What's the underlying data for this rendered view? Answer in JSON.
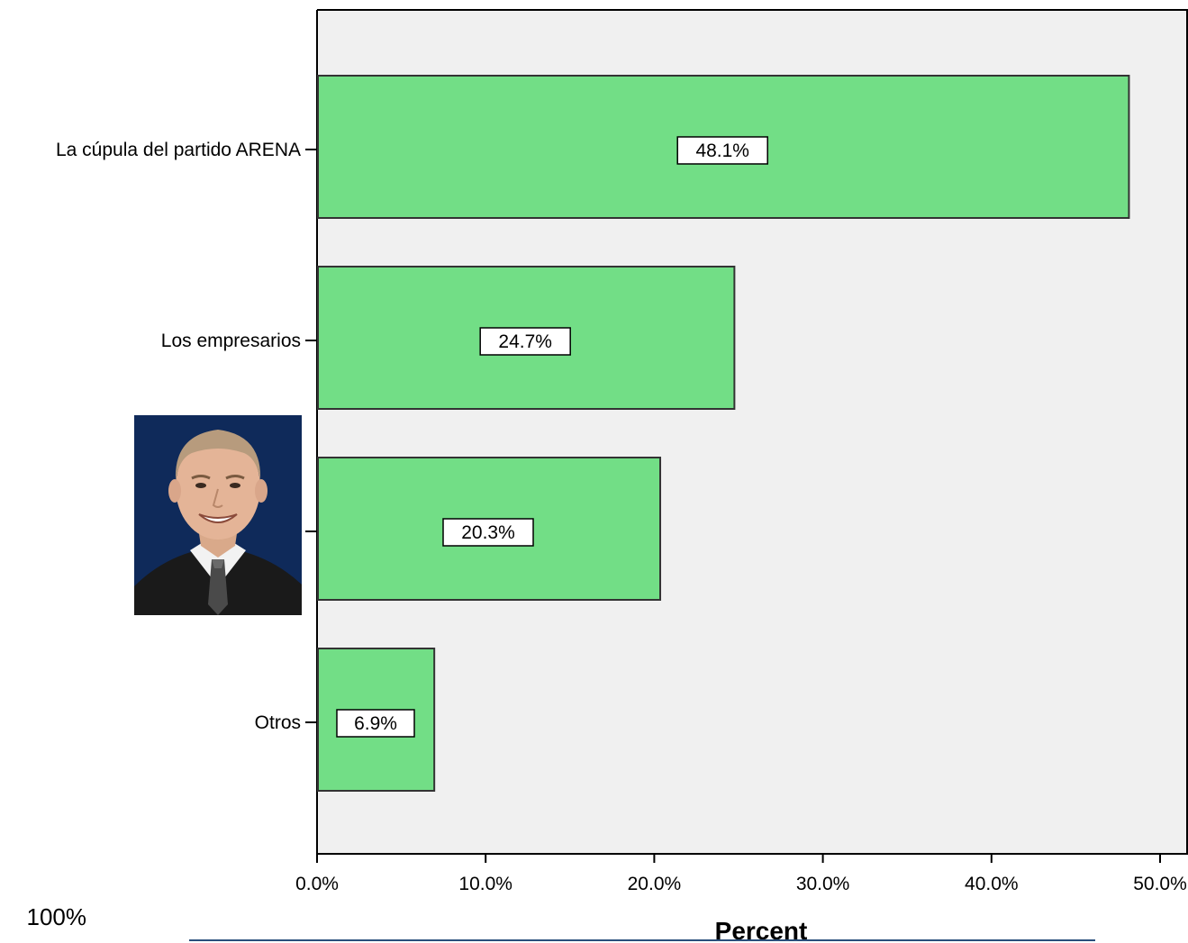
{
  "chart_data": {
    "type": "bar",
    "orientation": "horizontal",
    "categories": [
      "La cúpula del partido ARENA",
      "Los empresarios",
      "",
      "Otros"
    ],
    "values": [
      48.1,
      24.7,
      20.3,
      6.9
    ],
    "data_labels": [
      "48.1%",
      "24.7%",
      "20.3%",
      "6.9%"
    ],
    "x_ticks": [
      "0.0%",
      "10.0%",
      "20.0%",
      "30.0%",
      "40.0%",
      "50.0%"
    ],
    "xlim": [
      0,
      52
    ],
    "xlabel": "Percent",
    "ylabel": "",
    "grid": false,
    "colors": {
      "bar": "#72de86",
      "bar_border": "#333333",
      "plot_bg": "#f0f0f0"
    }
  },
  "footnote": "100%",
  "photo": {
    "icon": "portrait-photo"
  }
}
